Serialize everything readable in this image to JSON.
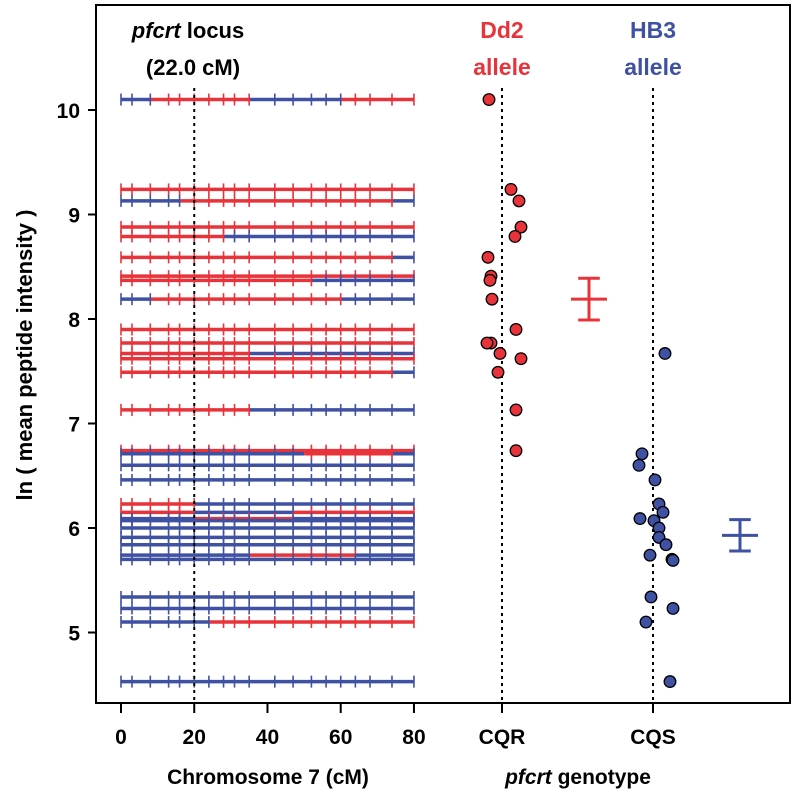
{
  "chart_data": {
    "type": "scatter",
    "ylabel": "ln ( mean peptide intensity )",
    "ylim": [
      4.3,
      10.8
    ],
    "yticks": [
      5,
      6,
      7,
      8,
      9,
      10
    ],
    "colors": {
      "dd2": "#e8333a",
      "hb3": "#3e51a3"
    },
    "locus": {
      "title_italic": "pfcrt",
      "title_rest": " locus",
      "subtitle": "(22.0 cM)",
      "position_cm": 20
    },
    "chromosome_panel": {
      "xlabel": "Chromosome 7 (cM)",
      "xlim": [
        -5,
        85
      ],
      "xticks": [
        0,
        20,
        40,
        60,
        80
      ],
      "markers_cm": [
        0,
        3,
        8,
        13,
        16,
        20,
        24,
        28,
        31,
        35,
        42,
        47,
        52,
        56,
        60,
        64,
        68,
        74,
        80
      ],
      "rows": [
        {
          "y": 10.1,
          "segments": [
            [
              0,
              8,
              "hb3"
            ],
            [
              8,
              35,
              "dd2"
            ],
            [
              35,
              60,
              "hb3"
            ],
            [
              60,
              80,
              "dd2"
            ]
          ]
        },
        {
          "y": 9.24,
          "segments": [
            [
              0,
              80,
              "dd2"
            ]
          ]
        },
        {
          "y": 9.13,
          "segments": [
            [
              0,
              16,
              "hb3"
            ],
            [
              16,
              74,
              "dd2"
            ],
            [
              74,
              80,
              "hb3"
            ]
          ]
        },
        {
          "y": 8.88,
          "segments": [
            [
              0,
              80,
              "dd2"
            ]
          ]
        },
        {
          "y": 8.79,
          "segments": [
            [
              0,
              28,
              "dd2"
            ],
            [
              28,
              80,
              "hb3"
            ]
          ]
        },
        {
          "y": 8.59,
          "segments": [
            [
              0,
              74,
              "dd2"
            ],
            [
              74,
              80,
              "hb3"
            ]
          ]
        },
        {
          "y": 8.41,
          "segments": [
            [
              0,
              80,
              "dd2"
            ]
          ]
        },
        {
          "y": 8.37,
          "segments": [
            [
              0,
              52,
              "dd2"
            ],
            [
              52,
              80,
              "hb3"
            ]
          ]
        },
        {
          "y": 8.19,
          "segments": [
            [
              0,
              8,
              "hb3"
            ],
            [
              8,
              60,
              "dd2"
            ],
            [
              60,
              80,
              "hb3"
            ]
          ]
        },
        {
          "y": 7.9,
          "segments": [
            [
              0,
              80,
              "dd2"
            ]
          ]
        },
        {
          "y": 7.77,
          "segments": [
            [
              0,
              80,
              "dd2"
            ]
          ]
        },
        {
          "y": 7.67,
          "segments": [
            [
              0,
              35,
              "dd2"
            ],
            [
              35,
              80,
              "hb3"
            ]
          ]
        },
        {
          "y": 7.62,
          "segments": [
            [
              0,
              80,
              "dd2"
            ]
          ]
        },
        {
          "y": 7.49,
          "segments": [
            [
              0,
              74,
              "dd2"
            ],
            [
              74,
              80,
              "hb3"
            ]
          ]
        },
        {
          "y": 7.13,
          "segments": [
            [
              0,
              35,
              "dd2"
            ],
            [
              35,
              80,
              "hb3"
            ]
          ]
        },
        {
          "y": 6.74,
          "segments": [
            [
              0,
              80,
              "dd2"
            ]
          ]
        },
        {
          "y": 6.71,
          "segments": [
            [
              0,
              50,
              "hb3"
            ],
            [
              50,
              74,
              "dd2"
            ],
            [
              74,
              80,
              "hb3"
            ]
          ]
        },
        {
          "y": 6.6,
          "segments": [
            [
              0,
              80,
              "hb3"
            ]
          ]
        },
        {
          "y": 6.46,
          "segments": [
            [
              0,
              80,
              "hb3"
            ]
          ]
        },
        {
          "y": 6.23,
          "segments": [
            [
              0,
              20,
              "dd2"
            ],
            [
              20,
              80,
              "hb3"
            ]
          ]
        },
        {
          "y": 6.15,
          "segments": [
            [
              0,
              20,
              "dd2"
            ],
            [
              20,
              47,
              "hb3"
            ],
            [
              47,
              80,
              "dd2"
            ]
          ]
        },
        {
          "y": 6.09,
          "segments": [
            [
              0,
              20,
              "hb3"
            ],
            [
              20,
              47,
              "dd2"
            ],
            [
              47,
              80,
              "hb3"
            ]
          ]
        },
        {
          "y": 6.07,
          "segments": [
            [
              0,
              80,
              "hb3"
            ]
          ]
        },
        {
          "y": 6.0,
          "segments": [
            [
              0,
              80,
              "hb3"
            ]
          ]
        },
        {
          "y": 5.91,
          "segments": [
            [
              0,
              80,
              "hb3"
            ]
          ]
        },
        {
          "y": 5.84,
          "segments": [
            [
              0,
              80,
              "hb3"
            ]
          ]
        },
        {
          "y": 5.74,
          "segments": [
            [
              0,
              35,
              "hb3"
            ],
            [
              35,
              64,
              "dd2"
            ],
            [
              64,
              80,
              "hb3"
            ]
          ]
        },
        {
          "y": 5.7,
          "segments": [
            [
              0,
              80,
              "hb3"
            ]
          ]
        },
        {
          "y": 5.34,
          "segments": [
            [
              0,
              80,
              "hb3"
            ]
          ]
        },
        {
          "y": 5.23,
          "segments": [
            [
              0,
              80,
              "hb3"
            ]
          ]
        },
        {
          "y": 5.1,
          "segments": [
            [
              0,
              24,
              "hb3"
            ],
            [
              24,
              80,
              "dd2"
            ]
          ]
        },
        {
          "y": 4.53,
          "segments": [
            [
              0,
              80,
              "hb3"
            ]
          ]
        }
      ]
    },
    "genotype_panel": {
      "xlabel_italic": "pfcrt",
      "xlabel_rest": " genotype",
      "categories": [
        "CQR",
        "CQS"
      ],
      "groups": [
        {
          "name_line1": "Dd2",
          "name_line2": "allele",
          "color": "dd2",
          "category": "CQR",
          "mean": 8.19,
          "error": [
            7.99,
            8.39
          ],
          "points": [
            {
              "dx": -0.13,
              "y": 10.1
            },
            {
              "dx": 0.09,
              "y": 9.24
            },
            {
              "dx": 0.17,
              "y": 9.13
            },
            {
              "dx": 0.19,
              "y": 8.88
            },
            {
              "dx": 0.13,
              "y": 8.79
            },
            {
              "dx": -0.14,
              "y": 8.59
            },
            {
              "dx": -0.11,
              "y": 8.41
            },
            {
              "dx": -0.12,
              "y": 8.37
            },
            {
              "dx": -0.1,
              "y": 8.19
            },
            {
              "dx": 0.14,
              "y": 7.9
            },
            {
              "dx": -0.11,
              "y": 7.77
            },
            {
              "dx": -0.15,
              "y": 7.77
            },
            {
              "dx": -0.02,
              "y": 7.67
            },
            {
              "dx": 0.19,
              "y": 7.62
            },
            {
              "dx": -0.04,
              "y": 7.49
            },
            {
              "dx": 0.14,
              "y": 7.13
            },
            {
              "dx": 0.14,
              "y": 6.74
            }
          ]
        },
        {
          "name_line1": "HB3",
          "name_line2": "allele",
          "color": "hb3",
          "category": "CQS",
          "mean": 5.93,
          "error": [
            5.78,
            6.08
          ],
          "points": [
            {
              "dx": 0.12,
              "y": 7.67
            },
            {
              "dx": -0.11,
              "y": 6.71
            },
            {
              "dx": -0.14,
              "y": 6.6
            },
            {
              "dx": 0.02,
              "y": 6.46
            },
            {
              "dx": 0.06,
              "y": 6.23
            },
            {
              "dx": 0.1,
              "y": 6.15
            },
            {
              "dx": -0.13,
              "y": 6.09
            },
            {
              "dx": 0.01,
              "y": 6.07
            },
            {
              "dx": 0.06,
              "y": 6.0
            },
            {
              "dx": 0.06,
              "y": 5.91
            },
            {
              "dx": 0.13,
              "y": 5.84
            },
            {
              "dx": -0.03,
              "y": 5.74
            },
            {
              "dx": 0.19,
              "y": 5.7
            },
            {
              "dx": 0.2,
              "y": 5.69
            },
            {
              "dx": -0.02,
              "y": 5.34
            },
            {
              "dx": 0.2,
              "y": 5.23
            },
            {
              "dx": -0.07,
              "y": 5.1
            },
            {
              "dx": 0.17,
              "y": 4.53
            }
          ]
        }
      ]
    }
  }
}
